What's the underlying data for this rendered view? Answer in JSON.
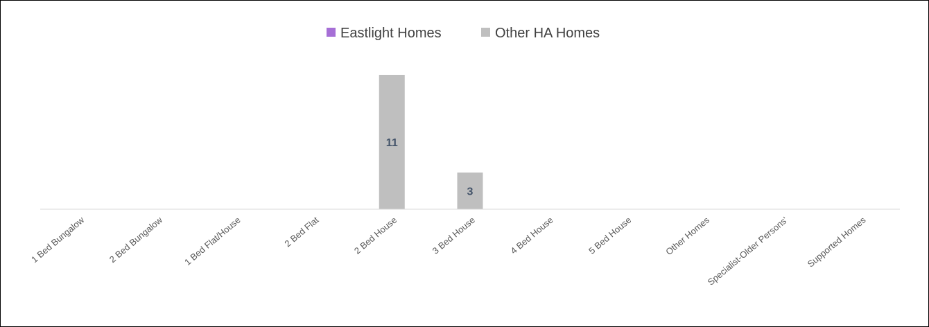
{
  "chart_data": {
    "type": "bar",
    "categories": [
      "1 Bed Bungalow",
      "2 Bed Bungalow",
      "1 Bed Flat/House",
      "2 Bed Flat",
      "2 Bed House",
      "3 Bed House",
      "4 Bed House",
      "5 Bed House",
      "Other Homes",
      "Specialist-Older Persons'",
      "Supported Homes"
    ],
    "series": [
      {
        "name": "Eastlight Homes",
        "color": "#a66fd6",
        "values": [
          0,
          0,
          0,
          0,
          0,
          0,
          0,
          0,
          0,
          0,
          0
        ]
      },
      {
        "name": "Other HA Homes",
        "color": "#bfbfbf",
        "values": [
          null,
          null,
          null,
          null,
          11,
          3,
          null,
          null,
          null,
          null,
          null
        ]
      }
    ],
    "ylim": [
      0,
      11
    ],
    "grid": false,
    "legend_position": "top-center",
    "title": "",
    "xlabel": "",
    "ylabel": ""
  }
}
